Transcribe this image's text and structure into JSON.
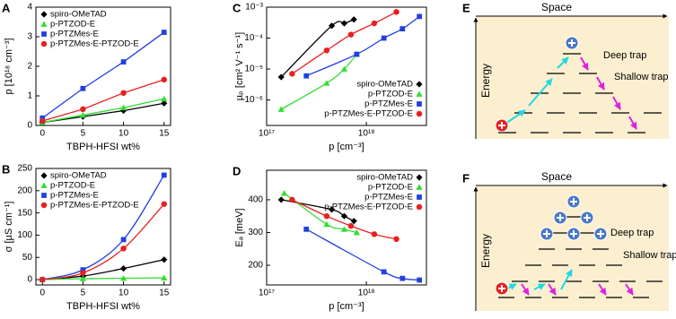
{
  "chart_data": [
    {
      "panel": "A",
      "type": "line",
      "xlabel": "TBPH-HFSI wt%",
      "ylabel": "p [10¹⁸ cm⁻³]",
      "x": [
        0,
        5,
        10,
        15
      ],
      "xlim": [
        -0.8,
        15.8
      ],
      "xticks": [
        0,
        5,
        10,
        15
      ],
      "ylim": [
        0,
        4
      ],
      "yticks": [
        0,
        1,
        2,
        3,
        4
      ],
      "curve": "linear",
      "legend": "upper left",
      "series": [
        {
          "name": "spiro-OMeTAD",
          "color": "#000000",
          "marker": "diamond",
          "values": [
            0.1,
            0.3,
            0.5,
            0.75
          ]
        },
        {
          "name": "p-PTZOD-E",
          "color": "#33dd33",
          "marker": "triangle",
          "values": [
            0.1,
            0.35,
            0.6,
            0.9
          ]
        },
        {
          "name": "p-PTZMes-E",
          "color": "#2040e0",
          "marker": "square",
          "values": [
            0.25,
            1.25,
            2.15,
            3.15
          ]
        },
        {
          "name": "p-PTZMes-E-PTZOD-E",
          "color": "#e82020",
          "marker": "circle",
          "values": [
            0.15,
            0.55,
            1.1,
            1.55
          ]
        }
      ]
    },
    {
      "panel": "B",
      "type": "line",
      "xlabel": "TBPH-HFSI wt%",
      "ylabel": "σ [µS cm⁻¹]",
      "x": [
        0,
        5,
        10,
        15
      ],
      "xlim": [
        -0.8,
        15.8
      ],
      "xticks": [
        0,
        5,
        10,
        15
      ],
      "ylim": [
        -12,
        250
      ],
      "yticks": [
        0,
        50,
        100,
        150,
        200,
        250
      ],
      "curve": "smooth",
      "legend": "upper left",
      "series": [
        {
          "name": "spiro-OMeTAD",
          "color": "#000000",
          "marker": "diamond",
          "values": [
            0,
            8,
            25,
            45
          ]
        },
        {
          "name": "p-PTZOD-E",
          "color": "#33dd33",
          "marker": "triangle",
          "values": [
            0,
            2,
            3,
            4
          ]
        },
        {
          "name": "p-PTZMes-E",
          "color": "#2040e0",
          "marker": "square",
          "values": [
            0,
            22,
            90,
            235
          ]
        },
        {
          "name": "p-PTZMes-E-PTZOD-E",
          "color": "#e82020",
          "marker": "circle",
          "values": [
            0,
            15,
            70,
            170
          ]
        }
      ]
    },
    {
      "panel": "C",
      "type": "line",
      "xlabel": "p [cm⁻³]",
      "ylabel": "µₚ [cm² V⁻¹ s⁻¹]",
      "xscale": "log",
      "yscale": "log",
      "xlim": [
        1e+17,
        4e+18
      ],
      "xticks": [
        {
          "value": 1e+17,
          "label": "10¹⁷"
        },
        {
          "value": 1e+18,
          "label": "10¹⁸"
        }
      ],
      "ylim": [
        1.5e-07,
        0.001
      ],
      "yticks": [
        {
          "value": 1e-06,
          "label": "10⁻⁶"
        },
        {
          "value": 1e-05,
          "label": "10⁻⁵"
        },
        {
          "value": 0.0001,
          "label": "10⁻⁴"
        },
        {
          "value": 0.001,
          "label": "10⁻³"
        }
      ],
      "curve": "smooth",
      "legend": "lower right",
      "series": [
        {
          "name": "spiro-OMeTAD",
          "color": "#000000",
          "marker": "diamond",
          "x": [
            1.4e+17,
            4.5e+17,
            6e+17,
            7.5e+17
          ],
          "values": [
            5.5e-06,
            0.00025,
            0.0003,
            0.0004
          ]
        },
        {
          "name": "p-PTZOD-E",
          "color": "#33dd33",
          "marker": "triangle",
          "x": [
            1.4e+17,
            4e+17,
            6e+17,
            8e+17
          ],
          "values": [
            5e-07,
            3.5e-06,
            1e-05,
            3e-05
          ]
        },
        {
          "name": "p-PTZMes-E",
          "color": "#2040e0",
          "marker": "square",
          "x": [
            2.5e+17,
            8e+17,
            1.5e+18,
            2.3e+18,
            3.4e+18
          ],
          "values": [
            6e-06,
            3e-05,
            0.0001,
            0.0002,
            0.0005
          ]
        },
        {
          "name": "p-PTZMes-E-PTZOD-E",
          "color": "#e82020",
          "marker": "circle",
          "x": [
            1.8e+17,
            4e+17,
            7e+17,
            1.2e+18,
            2e+18
          ],
          "values": [
            7e-06,
            4e-05,
            0.00013,
            0.0003,
            0.0007
          ]
        }
      ]
    },
    {
      "panel": "D",
      "type": "line",
      "xlabel": "p [cm⁻³]",
      "ylabel": "Eₐ [meV]",
      "xscale": "log",
      "xlim": [
        1e+17,
        4e+18
      ],
      "xticks": [
        {
          "value": 1e+17,
          "label": "10¹⁷"
        },
        {
          "value": 1e+18,
          "label": "10¹⁸"
        }
      ],
      "ylim": [
        140,
        490
      ],
      "yticks": [
        200,
        300,
        400
      ],
      "curve": "smooth",
      "legend": "upper right",
      "series": [
        {
          "name": "spiro-OMeTAD",
          "color": "#000000",
          "marker": "diamond",
          "x": [
            1.4e+17,
            4.5e+17,
            6e+17,
            7.5e+17
          ],
          "values": [
            400,
            370,
            350,
            335
          ]
        },
        {
          "name": "p-PTZOD-E",
          "color": "#33dd33",
          "marker": "triangle",
          "x": [
            1.5e+17,
            4e+17,
            6e+17,
            8e+17
          ],
          "values": [
            420,
            325,
            310,
            300
          ]
        },
        {
          "name": "p-PTZMes-E",
          "color": "#2040e0",
          "marker": "square",
          "x": [
            2.5e+17,
            1.5e+18,
            2.3e+18,
            3.4e+18
          ],
          "values": [
            310,
            180,
            160,
            155
          ]
        },
        {
          "name": "p-PTZMes-E-PTZOD-E",
          "color": "#e82020",
          "marker": "circle",
          "x": [
            1.8e+17,
            4e+17,
            7e+17,
            1.2e+18,
            2e+18
          ],
          "values": [
            400,
            350,
            320,
            295,
            280
          ]
        }
      ]
    }
  ],
  "diagrams": [
    {
      "panel": "E",
      "x_axis": "Space",
      "y_axis": "Energy",
      "deep_trap": "Deep trap",
      "shallow_trap": "Shallow trap"
    },
    {
      "panel": "F",
      "x_axis": "Space",
      "y_axis": "Energy",
      "deep_trap": "Deep trap",
      "shallow_trap": "Shallow trap"
    }
  ]
}
